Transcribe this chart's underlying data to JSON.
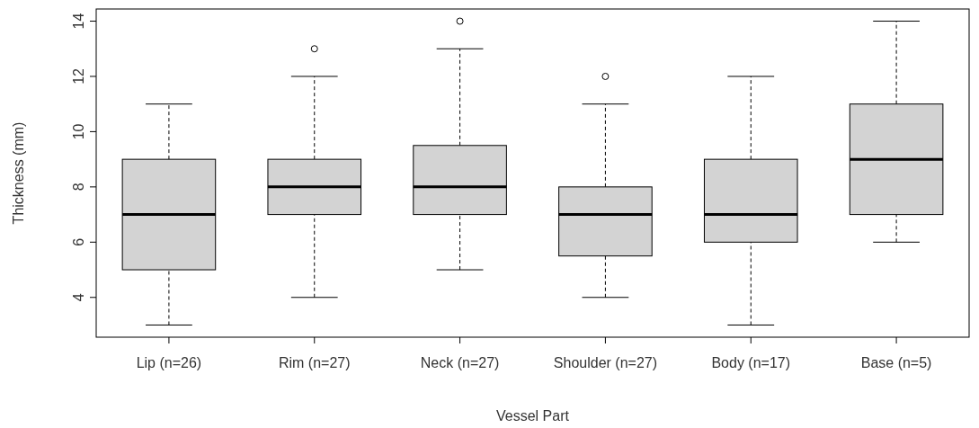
{
  "chart_data": {
    "type": "box",
    "xlabel": "Vessel Part",
    "ylabel": "Thickness (mm)",
    "categories": [
      "Lip (n=26)",
      "Rim (n=27)",
      "Neck (n=27)",
      "Shoulder (n=27)",
      "Body (n=17)",
      "Base (n=5)"
    ],
    "color": "#d3d3d3",
    "boxes": [
      {
        "low": 3,
        "q1": 5,
        "median": 7,
        "q3": 9,
        "high": 11
      },
      {
        "low": 4,
        "q1": 7,
        "median": 8,
        "q3": 9,
        "high": 12,
        "outliers": [
          13
        ]
      },
      {
        "low": 5,
        "q1": 7,
        "median": 8,
        "q3": 9.5,
        "high": 13,
        "outliers": [
          14
        ]
      },
      {
        "low": 4,
        "q1": 5.5,
        "median": 7,
        "q3": 8,
        "high": 11,
        "outliers": [
          12
        ]
      },
      {
        "low": 3,
        "q1": 6,
        "median": 7,
        "q3": 9,
        "high": 12
      },
      {
        "low": 6,
        "q1": 7,
        "median": 9,
        "q3": 11,
        "high": 14
      }
    ],
    "ylim": [
      2.56,
      14.44
    ],
    "yticks": [
      4,
      6,
      8,
      10,
      12,
      14
    ],
    "grid": false
  }
}
